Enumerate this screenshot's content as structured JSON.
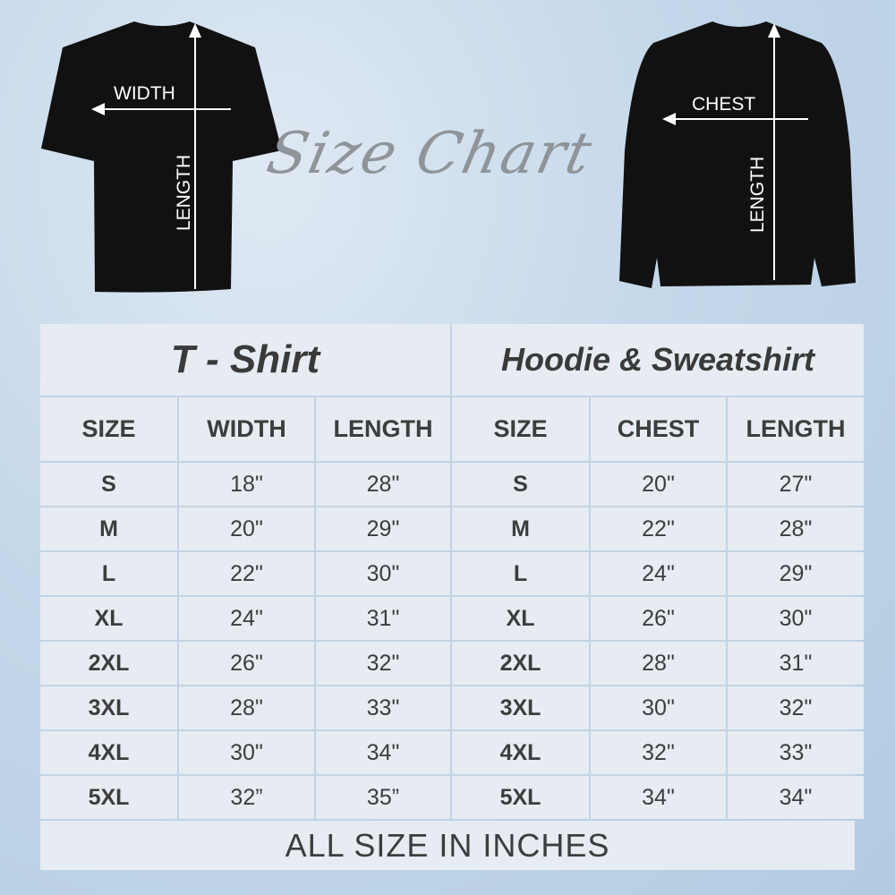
{
  "labels": {
    "tshirt_width": "WIDTH",
    "tshirt_length": "LENGTH",
    "sweat_chest": "CHEST",
    "sweat_length": "LENGTH"
  },
  "heading": "Size Chart",
  "tshirt": {
    "title": "T - Shirt",
    "headers": [
      "SIZE",
      "WIDTH",
      "LENGTH"
    ],
    "rows": [
      [
        "S",
        "18\"",
        "28\""
      ],
      [
        "M",
        "20\"",
        "29\""
      ],
      [
        "L",
        "22\"",
        "30\""
      ],
      [
        "XL",
        "24\"",
        "31\""
      ],
      [
        "2XL",
        "26\"",
        "32\""
      ],
      [
        "3XL",
        "28\"",
        "33\""
      ],
      [
        "4XL",
        "30\"",
        "34\""
      ],
      [
        "5XL",
        "32”",
        "35”"
      ]
    ]
  },
  "hoodie": {
    "title": "Hoodie & Sweatshirt",
    "headers": [
      "SIZE",
      "CHEST",
      "LENGTH"
    ],
    "rows": [
      [
        "S",
        "20\"",
        "27\""
      ],
      [
        "M",
        "22\"",
        "28\""
      ],
      [
        "L",
        "24\"",
        "29\""
      ],
      [
        "XL",
        "26\"",
        "30\""
      ],
      [
        "2XL",
        "28\"",
        "31\""
      ],
      [
        "3XL",
        "30\"",
        "32\""
      ],
      [
        "4XL",
        "32\"",
        "33\""
      ],
      [
        "5XL",
        "34\"",
        "34\""
      ]
    ]
  },
  "footer": "ALL SIZE IN INCHES"
}
